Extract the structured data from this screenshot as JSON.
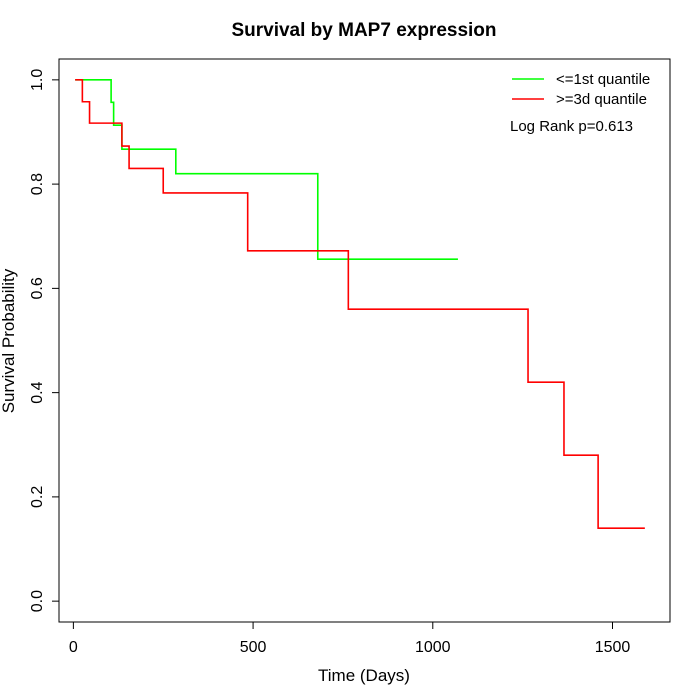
{
  "chart_data": {
    "type": "line",
    "subtype": "kaplan-meier step plot",
    "title": "Survival by MAP7 expression",
    "xlabel": "Time (Days)",
    "ylabel": "Survival Probability",
    "xlim": [
      -40,
      1660
    ],
    "ylim": [
      -0.04,
      1.04
    ],
    "x_ticks": [
      0,
      500,
      1000,
      1500
    ],
    "x_tick_labels": [
      "0",
      "500",
      "1000",
      "1500"
    ],
    "y_ticks": [
      0.0,
      0.2,
      0.4,
      0.6,
      0.8,
      1.0
    ],
    "y_tick_labels": [
      "0.0",
      "0.2",
      "0.4",
      "0.6",
      "0.8",
      "1.0"
    ],
    "grid": false,
    "legend_position": "top-right",
    "annotation": "Log Rank p=0.613",
    "series": [
      {
        "name": "<=1st quantile",
        "color": "#00ff00",
        "x": [
          5,
          105,
          112,
          135,
          285,
          680,
          1070
        ],
        "y": [
          1.0,
          0.957,
          0.913,
          0.867,
          0.82,
          0.656,
          0.656
        ]
      },
      {
        "name": ">=3d quantile",
        "color": "#ff0000",
        "x": [
          5,
          25,
          45,
          135,
          155,
          250,
          485,
          765,
          1265,
          1365,
          1460,
          1590
        ],
        "y": [
          1.0,
          0.958,
          0.917,
          0.873,
          0.83,
          0.783,
          0.672,
          0.56,
          0.42,
          0.28,
          0.14,
          0.14
        ]
      }
    ]
  }
}
